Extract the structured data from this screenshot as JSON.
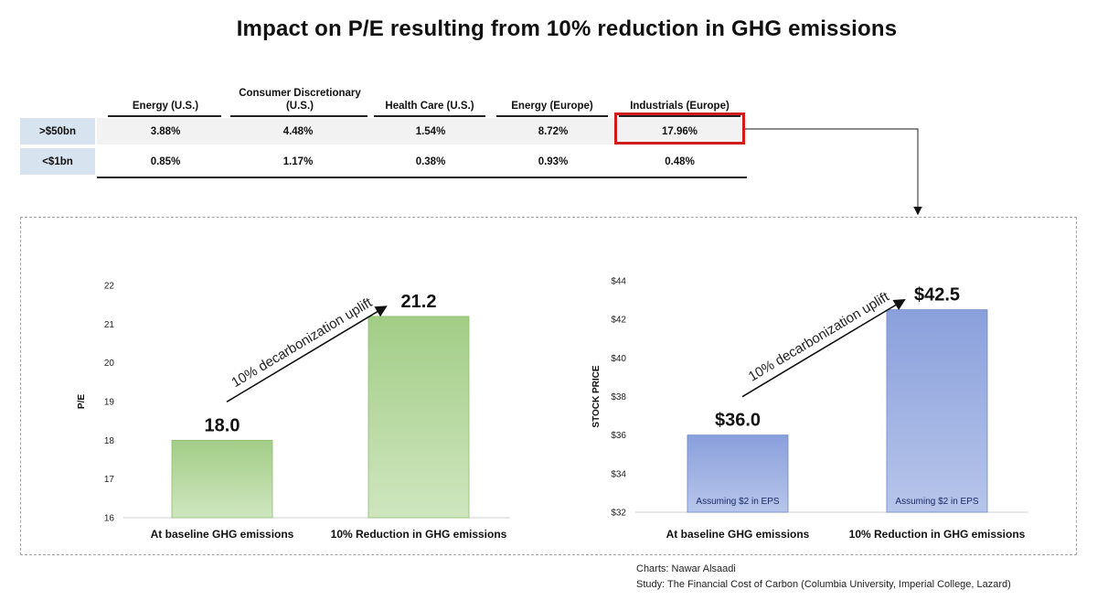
{
  "title": "Impact on P/E resulting from 10% reduction in GHG emissions",
  "table": {
    "columns": [
      "Energy (U.S.)",
      "Consumer Discretionary\n(U.S.)",
      "Health Care (U.S.)",
      "Energy (Europe)",
      "Industrials (Europe)"
    ],
    "rows": [
      {
        "label": ">$50bn",
        "values": [
          "3.88%",
          "4.48%",
          "1.54%",
          "8.72%",
          "17.96%"
        ]
      },
      {
        "label": "<$1bn",
        "values": [
          "0.85%",
          "1.17%",
          "0.38%",
          "0.93%",
          "0.48%"
        ]
      }
    ],
    "highlighted": {
      "row": ">$50bn",
      "column": "Industrials (Europe)"
    }
  },
  "colors": {
    "highlight": "#d01c1c",
    "green_bar": "#a9d18e",
    "blue_bar": "#8fa5dc",
    "row_label_bg": "#d7e3ee"
  },
  "chart_data": [
    {
      "type": "bar",
      "title": "",
      "ylabel": "P/E",
      "xlabel": "",
      "categories": [
        "At baseline GHG emissions",
        "10% Reduction in GHG emissions"
      ],
      "values": [
        18.0,
        21.2
      ],
      "value_labels": [
        "18.0",
        "21.2"
      ],
      "ylim": [
        16,
        22
      ],
      "yticks": [
        "16",
        "17",
        "18",
        "19",
        "20",
        "21",
        "22"
      ],
      "annotation": "10% decarbonization uplift",
      "bar_notes": [
        "",
        ""
      ],
      "grid": false
    },
    {
      "type": "bar",
      "title": "",
      "ylabel": "STOCK PRICE",
      "xlabel": "",
      "categories": [
        "At baseline GHG emissions",
        "10% Reduction in GHG emissions"
      ],
      "values": [
        36.0,
        42.5
      ],
      "value_labels": [
        "$36.0",
        "$42.5"
      ],
      "ylim": [
        32,
        44
      ],
      "yticks": [
        "$32",
        "$34",
        "$36",
        "$38",
        "$40",
        "$42",
        "$44"
      ],
      "annotation": "10% decarbonization uplift",
      "bar_notes": [
        "Assuming $2 in EPS",
        "Assuming $2 in EPS"
      ],
      "grid": false
    }
  ],
  "credits": {
    "line1": "Charts: Nawar Alsaadi",
    "line2": "Study: The Financial Cost of Carbon (Columbia University, Imperial College, Lazard)"
  }
}
